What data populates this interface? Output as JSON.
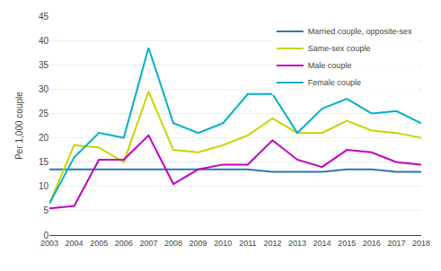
{
  "chart_data": {
    "type": "line",
    "ylabel": "Per 1,000 couple",
    "x": [
      2003,
      2004,
      2005,
      2006,
      2007,
      2008,
      2009,
      2010,
      2011,
      2012,
      2013,
      2014,
      2015,
      2016,
      2017,
      2018
    ],
    "series": [
      {
        "name": "Married couple, opposite-sex",
        "color": "#2E75B6",
        "values": [
          13.5,
          13.5,
          13.5,
          13.5,
          13.5,
          13.5,
          13.5,
          13.5,
          13.5,
          13.0,
          13.0,
          13.0,
          13.5,
          13.5,
          13.0,
          13.0
        ]
      },
      {
        "name": "Same-sex couple",
        "color": "#C8D400",
        "values": [
          6.5,
          18.5,
          18.0,
          15.0,
          29.5,
          17.5,
          17.0,
          18.5,
          20.5,
          24.0,
          21.0,
          21.0,
          23.5,
          21.5,
          21.0,
          20.0
        ]
      },
      {
        "name": "Male couple",
        "color": "#C000C0",
        "values": [
          5.5,
          6.0,
          15.5,
          15.5,
          20.5,
          10.5,
          13.5,
          14.5,
          14.5,
          19.5,
          15.5,
          14.0,
          17.5,
          17.0,
          15.0,
          14.5
        ]
      },
      {
        "name": "Female couple",
        "color": "#00B0C8",
        "values": [
          6.5,
          16.0,
          21.0,
          20.0,
          38.5,
          23.0,
          21.0,
          23.0,
          29.0,
          29.0,
          21.0,
          26.0,
          28.0,
          25.0,
          25.5,
          23.0
        ]
      }
    ],
    "xlim": [
      2003,
      2018
    ],
    "xticks": [
      2003,
      2004,
      2005,
      2006,
      2007,
      2008,
      2009,
      2010,
      2011,
      2012,
      2013,
      2014,
      2015,
      2016,
      2017,
      2018
    ],
    "ylim": [
      0,
      45
    ],
    "yticks": [
      0,
      5,
      10,
      15,
      20,
      25,
      30,
      35,
      40,
      45
    ],
    "grid": true,
    "legend": "upper right"
  }
}
